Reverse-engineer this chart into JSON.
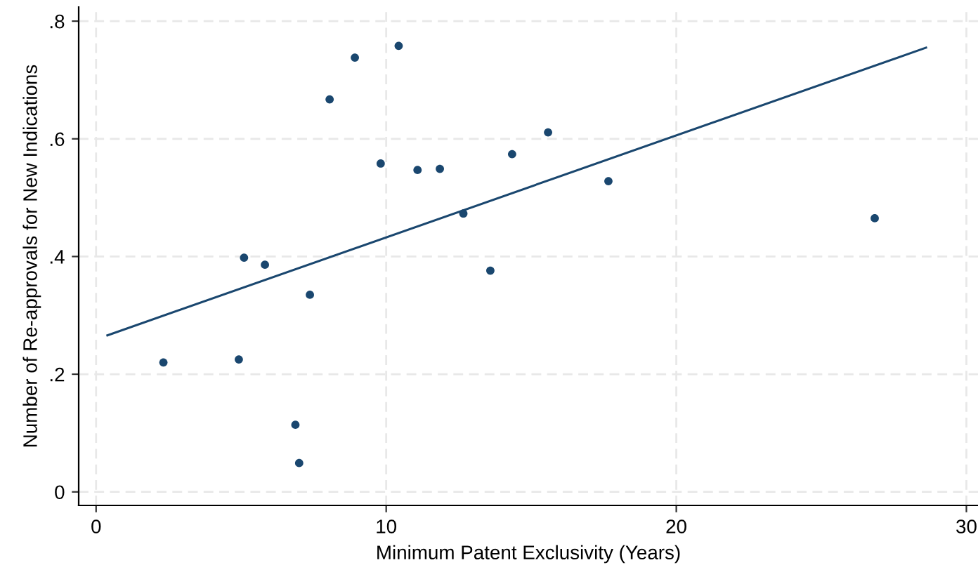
{
  "chart_data": {
    "type": "scatter",
    "xlabel": "Minimum Patent Exclusivity (Years)",
    "ylabel": "Number of Re-approvals for New Indications",
    "xlim": [
      -0.6,
      30.4
    ],
    "ylim": [
      -0.023,
      0.824
    ],
    "xticks": [
      0,
      10,
      20,
      30
    ],
    "yticks": [
      {
        "value": 0,
        "label": "0"
      },
      {
        "value": 0.2,
        "label": ".2"
      },
      {
        "value": 0.4,
        "label": ".4"
      },
      {
        "value": 0.6,
        "label": ".6"
      },
      {
        "value": 0.8,
        "label": ".8"
      }
    ],
    "grid": true,
    "series": [
      {
        "marker": "circle",
        "color": "#1a476f",
        "x": [
          2.32,
          4.92,
          5.1,
          5.82,
          6.87,
          7.0,
          7.37,
          8.05,
          8.92,
          9.81,
          10.43,
          11.08,
          11.85,
          12.66,
          13.59,
          14.34,
          15.58,
          17.66,
          26.84
        ],
        "values": [
          0.22,
          0.225,
          0.398,
          0.386,
          0.114,
          0.049,
          0.335,
          0.667,
          0.738,
          0.558,
          0.758,
          0.547,
          0.549,
          0.473,
          0.376,
          0.574,
          0.611,
          0.528,
          0.465
        ]
      },
      {
        "type": "line",
        "color": "#1a476f",
        "x": [
          0.39,
          28.61
        ],
        "values": [
          0.266,
          0.755
        ]
      }
    ]
  }
}
